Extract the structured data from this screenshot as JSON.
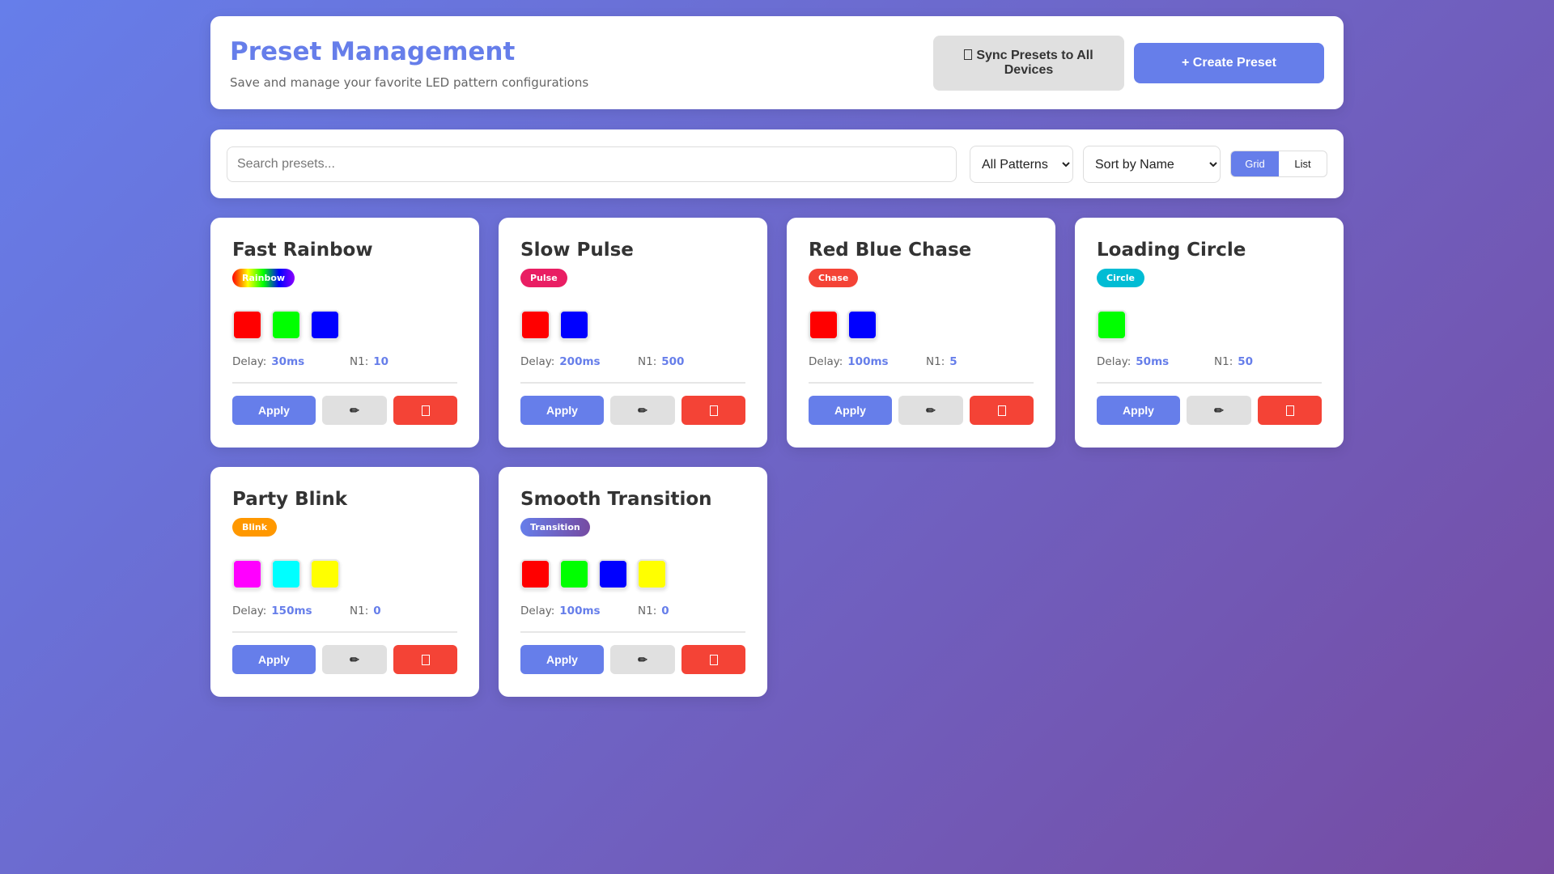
{
  "header": {
    "title": "Preset Management",
    "subtitle": "Save and manage your favorite LED pattern configurations",
    "sync_label": "Sync Presets to All Devices",
    "sync_icon": "box-icon",
    "create_label": "+ Create Preset"
  },
  "toolbar": {
    "search_placeholder": "Search presets...",
    "search_value": "",
    "pattern_filter": "All Patterns",
    "sort": "Sort by Name",
    "view_grid": "Grid",
    "view_list": "List",
    "active_view": "Grid"
  },
  "labels": {
    "delay": "Delay:",
    "n1": "N1:",
    "apply": "Apply",
    "edit_icon": "✏"
  },
  "colors": {
    "accent": "#667eea",
    "danger": "#f44336",
    "neutral": "#e0e0e0"
  },
  "presets": [
    {
      "name": "Fast Rainbow",
      "pattern": "Rainbow",
      "badge_bg": "linear-gradient(90deg,#ff0000,#ffff00,#00ff00,#0000ff,#8b00ff)",
      "colors": [
        "#ff0000",
        "#00ff00",
        "#0000ff"
      ],
      "delay": "30ms",
      "n1": "10"
    },
    {
      "name": "Slow Pulse",
      "pattern": "Pulse",
      "badge_bg": "#e91e63",
      "colors": [
        "#ff0000",
        "#0000ff"
      ],
      "delay": "200ms",
      "n1": "500"
    },
    {
      "name": "Red Blue Chase",
      "pattern": "Chase",
      "badge_bg": "#f44336",
      "colors": [
        "#ff0000",
        "#0000ff"
      ],
      "delay": "100ms",
      "n1": "5"
    },
    {
      "name": "Loading Circle",
      "pattern": "Circle",
      "badge_bg": "#00bcd4",
      "colors": [
        "#00ff00"
      ],
      "delay": "50ms",
      "n1": "50"
    },
    {
      "name": "Party Blink",
      "pattern": "Blink",
      "badge_bg": "#ff9800",
      "colors": [
        "#ff00ff",
        "#00ffff",
        "#ffff00"
      ],
      "delay": "150ms",
      "n1": "0"
    },
    {
      "name": "Smooth Transition",
      "pattern": "Transition",
      "badge_bg": "linear-gradient(90deg,#667eea,#764ba2)",
      "colors": [
        "#ff0000",
        "#00ff00",
        "#0000ff",
        "#ffff00"
      ],
      "delay": "100ms",
      "n1": "0"
    }
  ]
}
